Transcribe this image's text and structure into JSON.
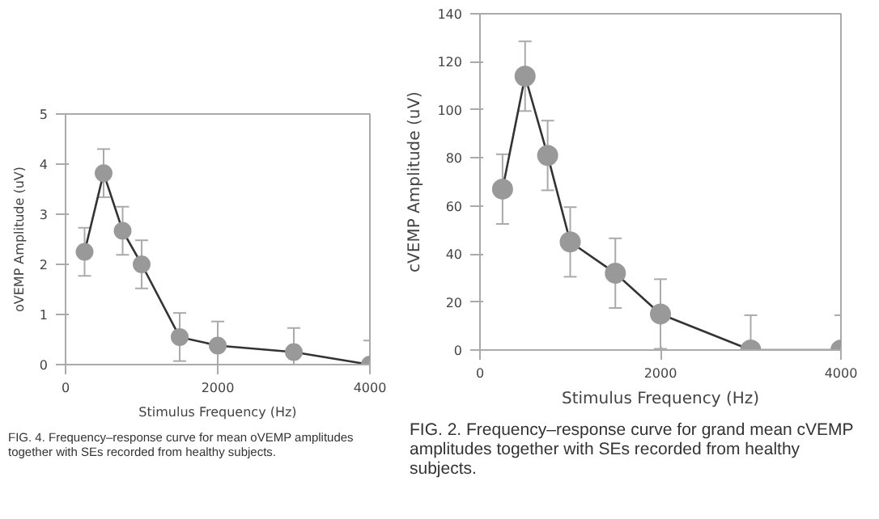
{
  "chart_data": [
    {
      "type": "line",
      "xlabel": "Stimulus Frequency (Hz)",
      "ylabel": "oVEMP Amplitude (uV)",
      "x": [
        250,
        500,
        750,
        1000,
        1500,
        2000,
        3000,
        4000
      ],
      "series": [
        {
          "color": "#999999",
          "values": [
            2.25,
            3.82,
            2.67,
            2.0,
            0.55,
            0.38,
            0.25,
            0.0
          ],
          "errors": [
            0.48,
            0.48,
            0.48,
            0.48,
            0.48,
            0.48,
            0.48,
            0.48
          ]
        }
      ],
      "marker": "circle",
      "line_style": "solid",
      "xlim": [
        0,
        4000
      ],
      "ylim": [
        0,
        5
      ],
      "xticks": [
        0,
        2000,
        4000
      ],
      "yticks": [
        0,
        1,
        2,
        3,
        4,
        5
      ],
      "grid": false,
      "annotations": [
        "FIG. 4.   Frequency–response curve for mean oVEMP amplitudes together with SEs recorded from healthy subjects."
      ]
    },
    {
      "type": "line",
      "xlabel": "Stimulus Frequency (Hz)",
      "ylabel": "cVEMP Amplitude (uV)",
      "x": [
        250,
        500,
        750,
        1000,
        1500,
        2000,
        3000,
        4000
      ],
      "series": [
        {
          "color": "#999999",
          "values": [
            67,
            114,
            81,
            45,
            32,
            15,
            0,
            0
          ],
          "errors": [
            14.5,
            14.5,
            14.5,
            14.5,
            14.5,
            14.5,
            14.5,
            14.5
          ]
        }
      ],
      "marker": "circle",
      "line_style": "solid",
      "xlim": [
        0,
        4000
      ],
      "ylim": [
        0,
        140
      ],
      "xticks": [
        0,
        2000,
        4000
      ],
      "yticks": [
        0,
        20,
        40,
        60,
        80,
        100,
        120,
        140
      ],
      "grid": false,
      "annotations": [
        "FIG. 2.   Frequency–response curve for grand mean cVEMP amplitudes together with SEs recorded from healthy subjects."
      ]
    }
  ]
}
